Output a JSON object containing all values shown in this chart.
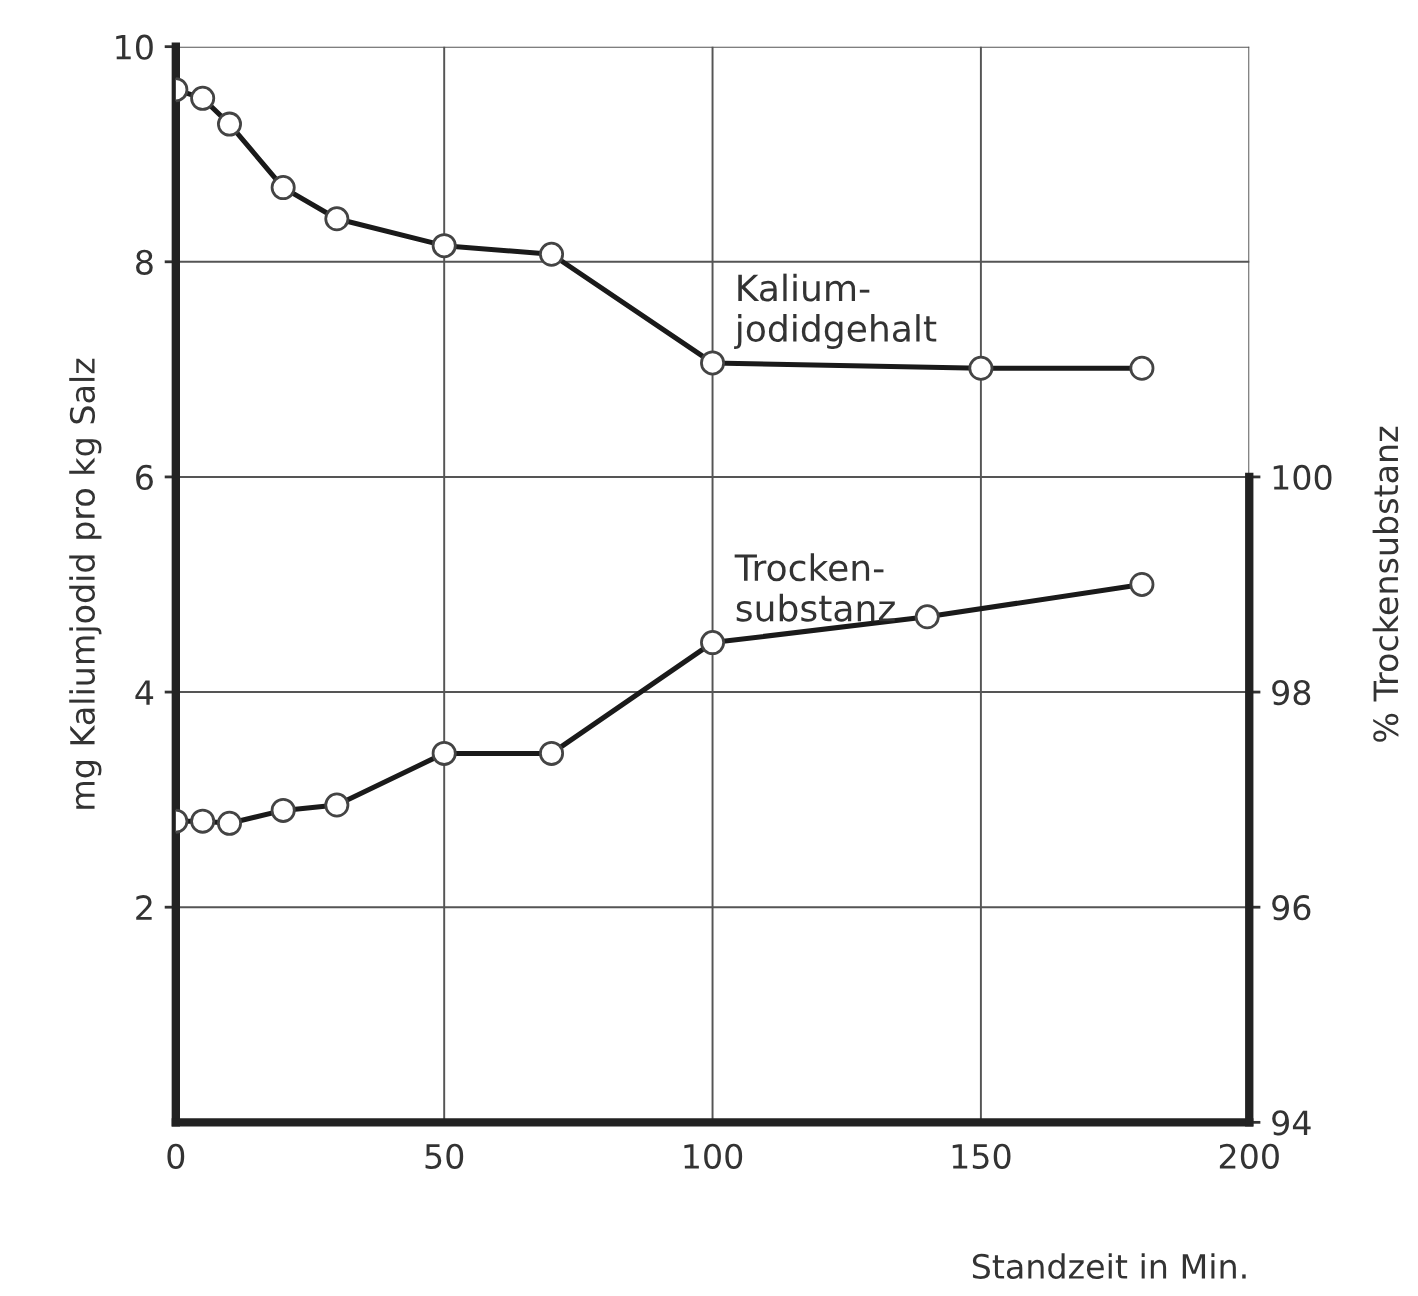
{
  "chart_data": {
    "type": "line",
    "xlabel": "Standzeit in Min.",
    "ylabel": "mg Kaliumjodid pro kg Salz",
    "y2label": "% Trockensubstanz",
    "xlim": [
      0,
      200
    ],
    "xticks": [
      0,
      50,
      100,
      150,
      200
    ],
    "ylim": [
      0,
      10
    ],
    "yticks": [
      2,
      4,
      6,
      8,
      10
    ],
    "y2lim": [
      94,
      104
    ],
    "y2ticks": [
      94,
      96,
      98,
      100
    ],
    "grid": true,
    "legend": false,
    "marker": "circle",
    "line_style": "solid",
    "series": [
      {
        "name": "Kalium-\njodidgehalt",
        "color": "#1a1a1a",
        "x": [
          0,
          5,
          10,
          20,
          30,
          50,
          70,
          100,
          150,
          180
        ],
        "values": [
          9.6,
          9.52,
          9.28,
          8.69,
          8.4,
          8.15,
          8.07,
          7.06,
          7.01,
          7.01
        ]
      },
      {
        "name": "Trocken-\nsubstanz",
        "color": "#1a1a1a",
        "axis": "y2",
        "x": [
          0,
          5,
          10,
          20,
          30,
          50,
          70,
          100,
          140,
          180
        ],
        "values": [
          96.8,
          96.8,
          96.78,
          96.9,
          96.95,
          97.43,
          97.43,
          98.46,
          98.7,
          99.0
        ]
      }
    ]
  }
}
